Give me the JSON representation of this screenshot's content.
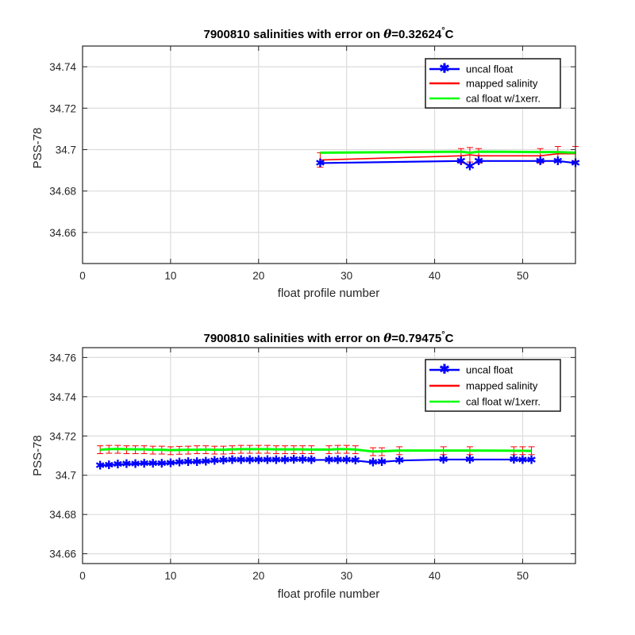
{
  "chart_data": [
    {
      "type": "line",
      "title_main": "7900810 salinities with error on ",
      "title_theta": "θ",
      "title_value": "=0.32624",
      "title_deg": "°",
      "title_unit": "C",
      "xlabel": "float profile number",
      "ylabel": "PSS-78",
      "xlim": [
        0,
        56
      ],
      "ylim": [
        34.645,
        34.75
      ],
      "xticks": [
        0,
        10,
        20,
        30,
        40,
        50
      ],
      "yticks": [
        34.66,
        34.68,
        34.7,
        34.72,
        34.74
      ],
      "ytick_labels": [
        "34.66",
        "34.68",
        "34.7",
        "34.72",
        "34.74"
      ],
      "grid": true,
      "legend_position": "top-right",
      "legend": [
        "uncal float",
        "mapped salinity",
        "cal float w/1xerr."
      ],
      "series": [
        {
          "name": "uncal float",
          "color": "#0000ff",
          "marker": "star",
          "x": [
            27,
            43,
            44,
            45,
            52,
            54,
            56
          ],
          "y": [
            34.6935,
            34.6945,
            34.692,
            34.6945,
            34.6945,
            34.6945,
            34.6935
          ]
        },
        {
          "name": "mapped salinity",
          "color": "#ff0000",
          "errorbars": true,
          "x": [
            27,
            43,
            44,
            45,
            52,
            54,
            56
          ],
          "y": [
            34.695,
            34.697,
            34.6975,
            34.697,
            34.697,
            34.698,
            34.698
          ],
          "err": [
            0.0035,
            0.0035,
            0.0035,
            0.0035,
            0.0035,
            0.0035,
            0.0035
          ]
        },
        {
          "name": "cal float w/1xerr.",
          "color": "#00ff00",
          "x": [
            27,
            43,
            44,
            45,
            52,
            54,
            56
          ],
          "y": [
            34.6985,
            34.699,
            34.6985,
            34.699,
            34.6988,
            34.6988,
            34.6985
          ]
        }
      ]
    },
    {
      "type": "line",
      "title_main": "7900810 salinities with error on ",
      "title_theta": "θ",
      "title_value": "=0.79475",
      "title_deg": "°",
      "title_unit": "C",
      "xlabel": "float profile number",
      "ylabel": "PSS-78",
      "xlim": [
        0,
        56
      ],
      "ylim": [
        34.655,
        34.765
      ],
      "xticks": [
        0,
        10,
        20,
        30,
        40,
        50
      ],
      "yticks": [
        34.66,
        34.68,
        34.7,
        34.72,
        34.74,
        34.76
      ],
      "ytick_labels": [
        "34.66",
        "34.68",
        "34.7",
        "34.72",
        "34.74",
        "34.76"
      ],
      "grid": true,
      "legend_position": "top-right",
      "legend": [
        "uncal float",
        "mapped salinity",
        "cal float w/1xerr."
      ],
      "series": [
        {
          "name": "uncal float",
          "color": "#0000ff",
          "marker": "star",
          "x": [
            2,
            3,
            4,
            5,
            6,
            7,
            8,
            9,
            10,
            11,
            12,
            13,
            14,
            15,
            16,
            17,
            18,
            19,
            20,
            21,
            22,
            23,
            24,
            25,
            26,
            28,
            29,
            30,
            31,
            33,
            34,
            36,
            41,
            44,
            49,
            50,
            51
          ],
          "y": [
            34.705,
            34.7052,
            34.7055,
            34.7057,
            34.7058,
            34.706,
            34.706,
            34.706,
            34.7062,
            34.7065,
            34.7067,
            34.7068,
            34.707,
            34.7073,
            34.7075,
            34.7078,
            34.7078,
            34.7078,
            34.7078,
            34.7078,
            34.7078,
            34.7078,
            34.708,
            34.708,
            34.7078,
            34.7078,
            34.7078,
            34.7078,
            34.7075,
            34.7065,
            34.7068,
            34.7075,
            34.708,
            34.708,
            34.708,
            34.7078,
            34.7078
          ]
        },
        {
          "name": "mapped salinity",
          "color": "#ff0000",
          "errorbars": true,
          "x": [
            2,
            3,
            4,
            5,
            6,
            7,
            8,
            9,
            10,
            11,
            12,
            13,
            14,
            15,
            16,
            17,
            18,
            19,
            20,
            21,
            22,
            23,
            24,
            25,
            26,
            28,
            29,
            30,
            31,
            33,
            34,
            36,
            41,
            44,
            49,
            50,
            51
          ],
          "y": [
            34.713,
            34.7132,
            34.7132,
            34.713,
            34.713,
            34.713,
            34.7128,
            34.7128,
            34.7125,
            34.7127,
            34.7128,
            34.713,
            34.713,
            34.7128,
            34.7128,
            34.713,
            34.7132,
            34.7132,
            34.7132,
            34.7132,
            34.713,
            34.713,
            34.713,
            34.713,
            34.713,
            34.713,
            34.7132,
            34.7132,
            34.713,
            34.712,
            34.712,
            34.7125,
            34.7125,
            34.7125,
            34.7125,
            34.7125,
            34.7125
          ],
          "err": [
            0.002,
            0.002,
            0.002,
            0.002,
            0.002,
            0.002,
            0.002,
            0.002,
            0.002,
            0.002,
            0.002,
            0.002,
            0.002,
            0.002,
            0.002,
            0.002,
            0.002,
            0.002,
            0.002,
            0.002,
            0.002,
            0.002,
            0.002,
            0.002,
            0.002,
            0.002,
            0.002,
            0.002,
            0.002,
            0.002,
            0.002,
            0.002,
            0.002,
            0.002,
            0.002,
            0.002,
            0.002
          ]
        },
        {
          "name": "cal float w/1xerr.",
          "color": "#00ff00",
          "x": [
            2,
            3,
            4,
            5,
            6,
            7,
            8,
            9,
            10,
            11,
            12,
            13,
            14,
            15,
            16,
            17,
            18,
            19,
            20,
            21,
            22,
            23,
            24,
            25,
            26,
            28,
            29,
            30,
            31,
            33,
            34,
            36,
            41,
            44,
            49,
            50,
            51
          ],
          "y": [
            34.713,
            34.7133,
            34.7134,
            34.7133,
            34.7132,
            34.7132,
            34.713,
            34.713,
            34.7128,
            34.7129,
            34.713,
            34.713,
            34.7131,
            34.713,
            34.713,
            34.7132,
            34.7133,
            34.7133,
            34.7133,
            34.7133,
            34.7132,
            34.7132,
            34.7132,
            34.7132,
            34.7131,
            34.7131,
            34.7133,
            34.7133,
            34.7131,
            34.7121,
            34.7122,
            34.7126,
            34.7126,
            34.7126,
            34.7125,
            34.7125,
            34.7124
          ]
        }
      ]
    }
  ]
}
